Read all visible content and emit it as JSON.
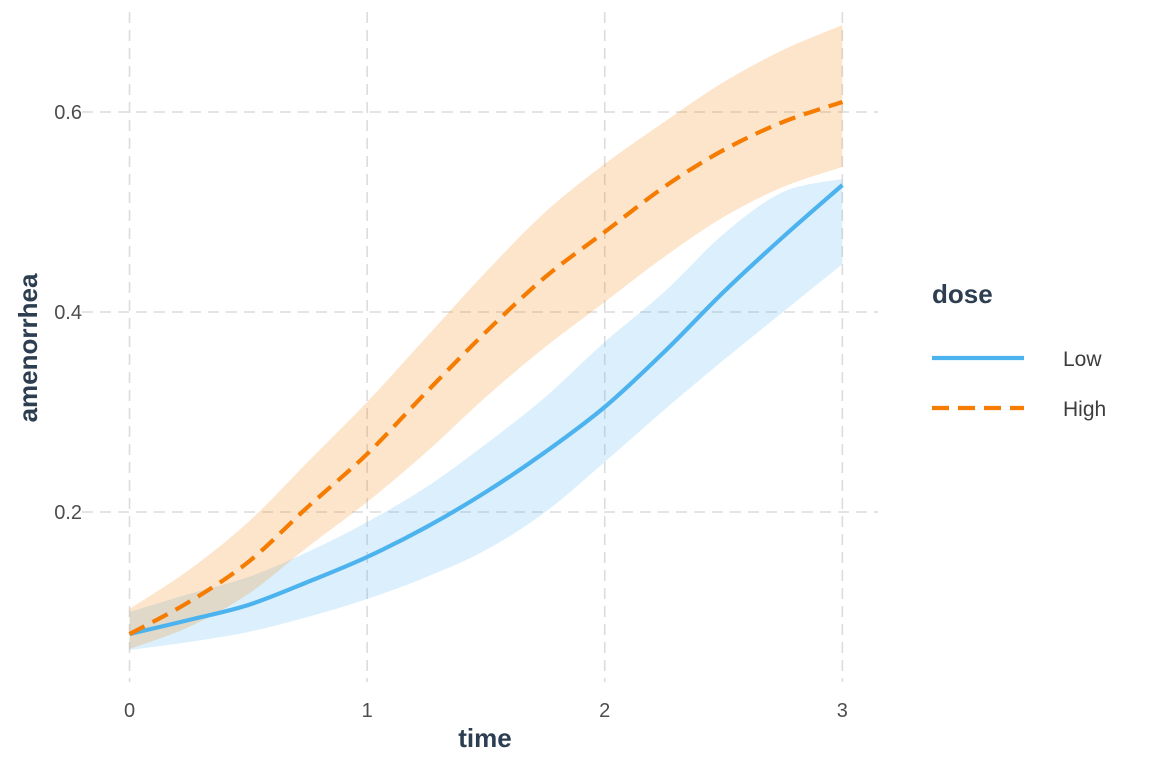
{
  "chart_data": {
    "type": "line",
    "xlabel": "time",
    "ylabel": "amenorrhea",
    "xlim": [
      -0.2,
      3.15
    ],
    "ylim": [
      0.03,
      0.7
    ],
    "x_ticks": [
      0,
      1,
      2,
      3
    ],
    "y_ticks": [
      0.2,
      0.4,
      0.6
    ],
    "grid": true,
    "legend": {
      "title": "dose",
      "position": "right"
    },
    "series": [
      {
        "name": "Low",
        "color": "#4db3ef",
        "line_style": "solid",
        "x": [
          0,
          0.25,
          0.5,
          0.75,
          1,
          1.25,
          1.5,
          1.75,
          2,
          2.25,
          2.5,
          2.75,
          3
        ],
        "y": [
          0.078,
          0.092,
          0.107,
          0.13,
          0.155,
          0.185,
          0.22,
          0.26,
          0.305,
          0.36,
          0.42,
          0.475,
          0.527
        ],
        "lower": [
          0.062,
          0.07,
          0.08,
          0.095,
          0.113,
          0.135,
          0.162,
          0.2,
          0.25,
          0.302,
          0.352,
          0.4,
          0.448
        ],
        "upper": [
          0.1,
          0.118,
          0.135,
          0.16,
          0.19,
          0.225,
          0.268,
          0.315,
          0.37,
          0.42,
          0.478,
          0.52,
          0.533
        ]
      },
      {
        "name": "High",
        "color": "#f57c00",
        "line_style": "dashed",
        "x": [
          0,
          0.25,
          0.5,
          0.75,
          1,
          1.25,
          1.5,
          1.75,
          2,
          2.25,
          2.5,
          2.75,
          3
        ],
        "y": [
          0.078,
          0.11,
          0.15,
          0.205,
          0.258,
          0.32,
          0.38,
          0.435,
          0.48,
          0.525,
          0.562,
          0.59,
          0.61
        ],
        "lower": [
          0.063,
          0.085,
          0.118,
          0.165,
          0.21,
          0.26,
          0.315,
          0.365,
          0.41,
          0.455,
          0.495,
          0.525,
          0.545
        ],
        "upper": [
          0.103,
          0.142,
          0.19,
          0.25,
          0.31,
          0.375,
          0.44,
          0.5,
          0.548,
          0.59,
          0.63,
          0.662,
          0.687
        ]
      }
    ]
  }
}
